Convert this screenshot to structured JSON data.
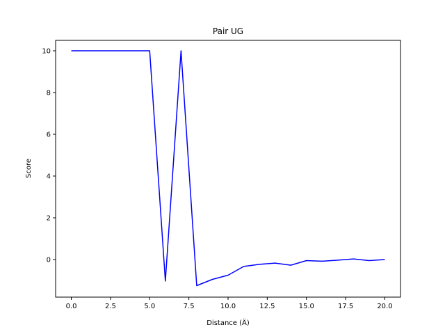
{
  "chart_data": {
    "type": "line",
    "title": "Pair UG",
    "xlabel": "Distance (Ä)",
    "ylabel": "Score",
    "xlim": [
      -1,
      21
    ],
    "ylim": [
      -1.8,
      10.5
    ],
    "xticks": [
      0.0,
      2.5,
      5.0,
      7.5,
      10.0,
      12.5,
      15.0,
      17.5,
      20.0
    ],
    "xtick_labels": [
      "0.0",
      "2.5",
      "5.0",
      "7.5",
      "10.0",
      "12.5",
      "15.0",
      "17.5",
      "20.0"
    ],
    "yticks": [
      0,
      2,
      4,
      6,
      8,
      10
    ],
    "ytick_labels": [
      "0",
      "2",
      "4",
      "6",
      "8",
      "10"
    ],
    "grid": false,
    "series": [
      {
        "color": "#0000ff",
        "x": [
          0,
          1,
          2,
          3,
          4,
          5,
          6,
          7,
          8,
          9,
          10,
          11,
          12,
          13,
          14,
          15,
          16,
          17,
          18,
          19,
          20
        ],
        "y": [
          10,
          10,
          10,
          10,
          10,
          10,
          -1.03,
          10,
          -1.25,
          -0.95,
          -0.75,
          -0.33,
          -0.23,
          -0.17,
          -0.27,
          -0.05,
          -0.08,
          -0.03,
          0.03,
          -0.05,
          0.0
        ]
      }
    ]
  }
}
